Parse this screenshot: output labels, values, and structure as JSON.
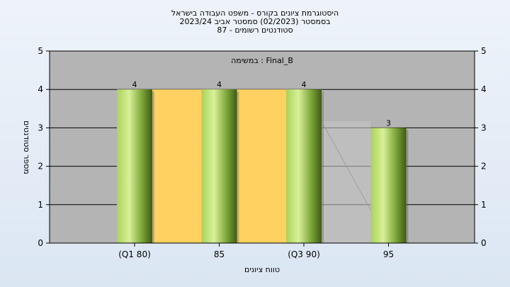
{
  "chart_data": {
    "type": "bar",
    "title_lines": [
      "היסטוגרמת ציונים בקורס - משפט העבודה בישראל",
      "בסמסטר  (02/2023)  סמסטר אביב 2023/24",
      "סטודנטים רשומים - 87"
    ],
    "annotation": "במשימה : Final_B",
    "xlabel": "טווח ציונים",
    "ylabel": "מספר סטודנטים",
    "categories": [
      "(Q1 80)",
      "85",
      "(Q3 90)",
      "95"
    ],
    "values": [
      4,
      4,
      4,
      3
    ],
    "ylim": [
      0,
      5
    ],
    "yticks": [
      0,
      1,
      2,
      3,
      4,
      5
    ],
    "grid": true,
    "iqr_band": {
      "from_category": 0,
      "to_category": 2,
      "value": 4,
      "color": "#ffd160"
    },
    "colors": {
      "plot_bg": "#b4b4b4",
      "bar_light": "#cfe98a",
      "bar_mid": "#8fbf3a",
      "bar_dark": "#4f6e20"
    }
  }
}
